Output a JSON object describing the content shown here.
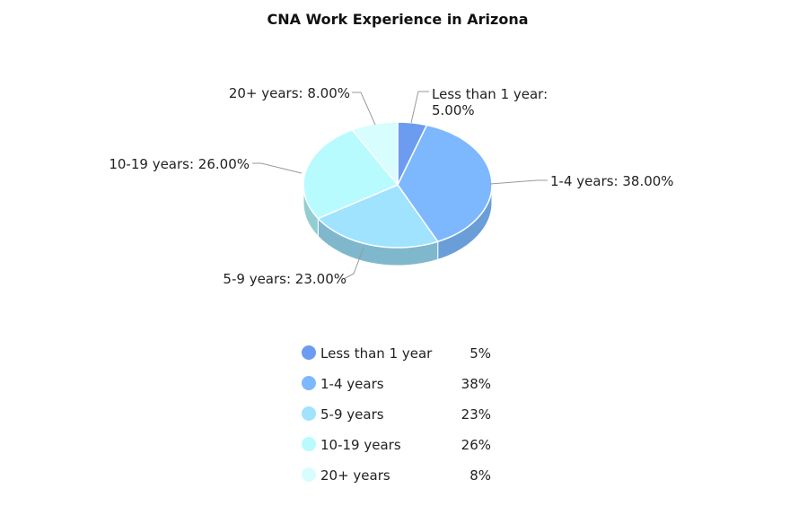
{
  "chart_data": {
    "type": "pie",
    "title": "CNA Work Experience in Arizona",
    "slices": [
      {
        "label": "Less than 1 year",
        "value": 5.0,
        "data_label": "Less than 1 year:",
        "data_label_2": "5.00%",
        "legend_value": "5%",
        "color": "#6b9cf0",
        "side": "#5c86cc"
      },
      {
        "label": "1-4 years",
        "value": 38.0,
        "data_label": "1-4 years: 38.00%",
        "legend_value": "38%",
        "color": "#7db8ff",
        "side": "#6a9ed8"
      },
      {
        "label": "5-9 years",
        "value": 23.0,
        "data_label": "5-9 years: 23.00%",
        "legend_value": "23%",
        "color": "#9fe3ff",
        "side": "#7fb8cc"
      },
      {
        "label": "10-19 years",
        "value": 26.0,
        "data_label": "10-19 years: 26.00%",
        "legend_value": "26%",
        "color": "#b8fbff",
        "side": "#93cdd2"
      },
      {
        "label": "20+ years",
        "value": 8.0,
        "data_label": "20+ years: 8.00%",
        "legend_value": "8%",
        "color": "#d8fdff",
        "side": "#b0d2d6"
      }
    ],
    "legend_placement": "bottom"
  }
}
